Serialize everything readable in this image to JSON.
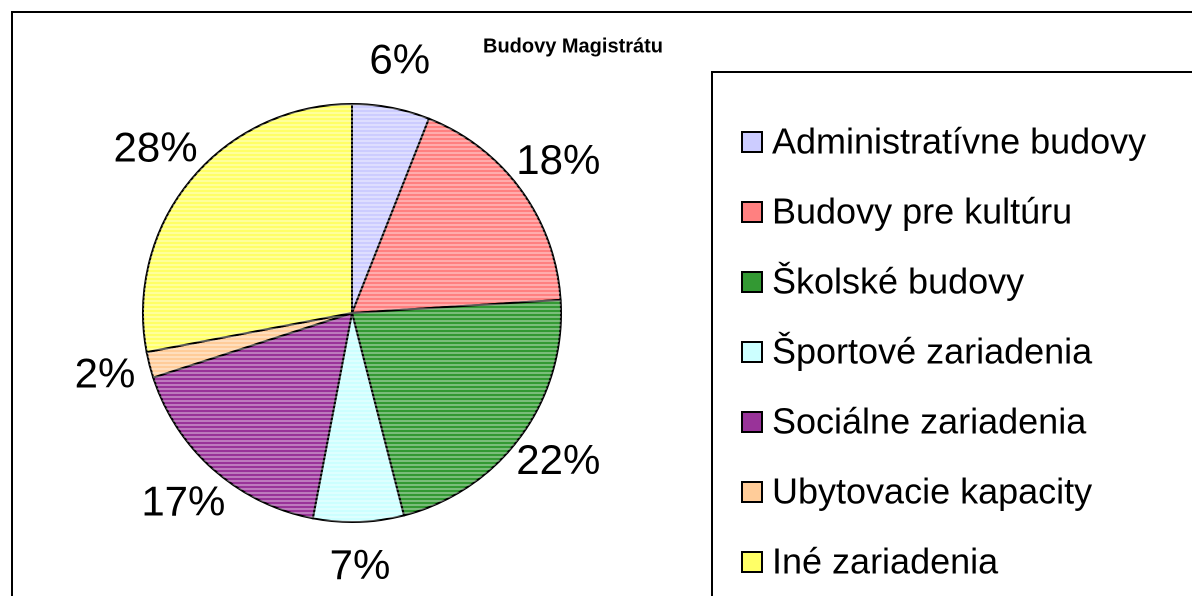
{
  "chart_data": {
    "type": "pie",
    "title": "Budovy Magistrátu",
    "categories": [
      "Administratívne budovy",
      "Budovy pre kultúru",
      "Školské budovy",
      "Športové zariadenia",
      "Sociálne zariadenia",
      "Ubytovacie kapacity",
      "Iné zariadenia"
    ],
    "values": [
      6,
      18,
      22,
      7,
      17,
      2,
      28
    ],
    "value_labels": [
      "6%",
      "18%",
      "22%",
      "7%",
      "17%",
      "2%",
      "28%"
    ],
    "colors": [
      "#ccccff",
      "#ff8080",
      "#339933",
      "#ccffff",
      "#993399",
      "#ffcc99",
      "#ffff66"
    ],
    "legend": "right"
  }
}
